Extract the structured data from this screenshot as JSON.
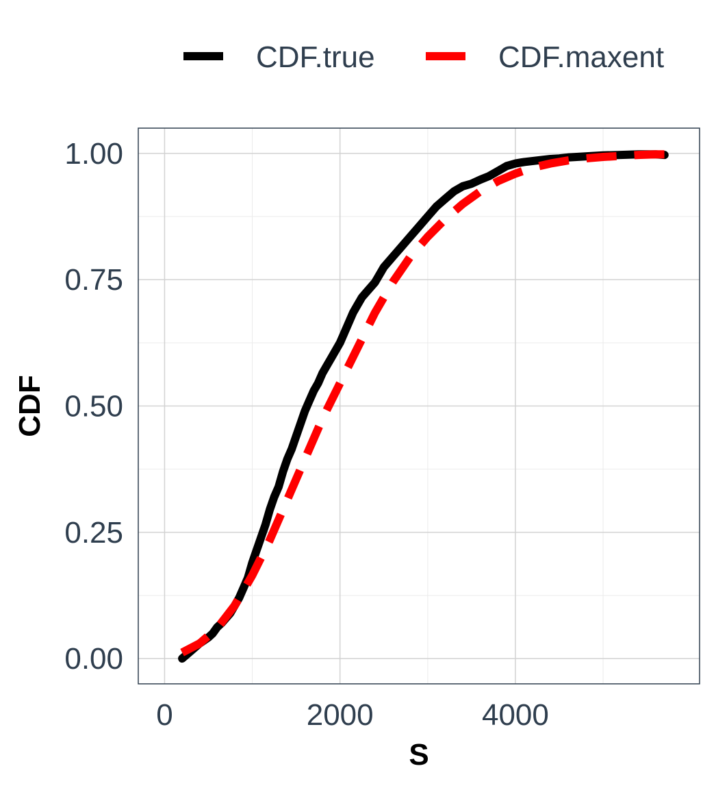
{
  "chart_data": {
    "type": "line",
    "title": "",
    "xlabel": "S",
    "ylabel": "CDF",
    "xlim": [
      -300,
      6100
    ],
    "ylim": [
      -0.05,
      1.05
    ],
    "x_ticks": [
      0,
      2000,
      4000
    ],
    "x_tick_labels": [
      "0",
      "2000",
      "4000"
    ],
    "x_minor_ticks": [
      1000,
      3000,
      5000
    ],
    "y_ticks": [
      0,
      0.25,
      0.5,
      0.75,
      1.0
    ],
    "y_tick_labels": [
      "0.00",
      "0.25",
      "0.50",
      "0.75",
      "1.00"
    ],
    "y_minor_ticks": [
      0.125,
      0.375,
      0.625,
      0.875
    ],
    "grid": true,
    "legend_position": "top",
    "series": [
      {
        "name": "CDF.true",
        "color": "#000000",
        "dash": "solid",
        "x": [
          200,
          300,
          400,
          500,
          550,
          600,
          650,
          700,
          750,
          800,
          850,
          900,
          950,
          1000,
          1050,
          1100,
          1150,
          1200,
          1250,
          1300,
          1350,
          1400,
          1450,
          1500,
          1550,
          1600,
          1650,
          1700,
          1750,
          1800,
          1850,
          1900,
          1950,
          2000,
          2050,
          2100,
          2150,
          2200,
          2250,
          2300,
          2400,
          2500,
          2600,
          2700,
          2800,
          2900,
          3000,
          3100,
          3200,
          3300,
          3400,
          3500,
          3600,
          3700,
          3800,
          3900,
          4000,
          4100,
          4200,
          4300,
          4400,
          4500,
          4600,
          4800,
          5000,
          5200,
          5400,
          5600,
          5700
        ],
        "y": [
          0.0,
          0.015,
          0.03,
          0.042,
          0.05,
          0.062,
          0.07,
          0.08,
          0.09,
          0.105,
          0.12,
          0.14,
          0.16,
          0.19,
          0.215,
          0.24,
          0.265,
          0.295,
          0.32,
          0.34,
          0.37,
          0.395,
          0.415,
          0.44,
          0.465,
          0.49,
          0.51,
          0.53,
          0.545,
          0.565,
          0.58,
          0.595,
          0.61,
          0.625,
          0.645,
          0.665,
          0.685,
          0.7,
          0.715,
          0.725,
          0.745,
          0.775,
          0.795,
          0.815,
          0.835,
          0.855,
          0.875,
          0.895,
          0.91,
          0.925,
          0.935,
          0.94,
          0.948,
          0.955,
          0.965,
          0.975,
          0.98,
          0.983,
          0.985,
          0.987,
          0.989,
          0.99,
          0.992,
          0.994,
          0.996,
          0.997,
          0.998,
          0.998,
          0.997
        ]
      },
      {
        "name": "CDF.maxent",
        "color": "#ff0000",
        "dash": "dashed",
        "x": [
          200,
          400,
          600,
          800,
          1000,
          1200,
          1400,
          1600,
          1800,
          2000,
          2200,
          2400,
          2600,
          2800,
          3000,
          3200,
          3400,
          3600,
          3800,
          4000,
          4200,
          4400,
          4600,
          4800,
          5000,
          5200,
          5400,
          5600,
          5700
        ],
        "y": [
          0.012,
          0.03,
          0.06,
          0.105,
          0.165,
          0.235,
          0.315,
          0.395,
          0.475,
          0.545,
          0.615,
          0.685,
          0.745,
          0.795,
          0.835,
          0.87,
          0.9,
          0.925,
          0.945,
          0.96,
          0.972,
          0.98,
          0.986,
          0.99,
          0.993,
          0.995,
          0.997,
          0.998,
          0.998
        ]
      }
    ]
  }
}
